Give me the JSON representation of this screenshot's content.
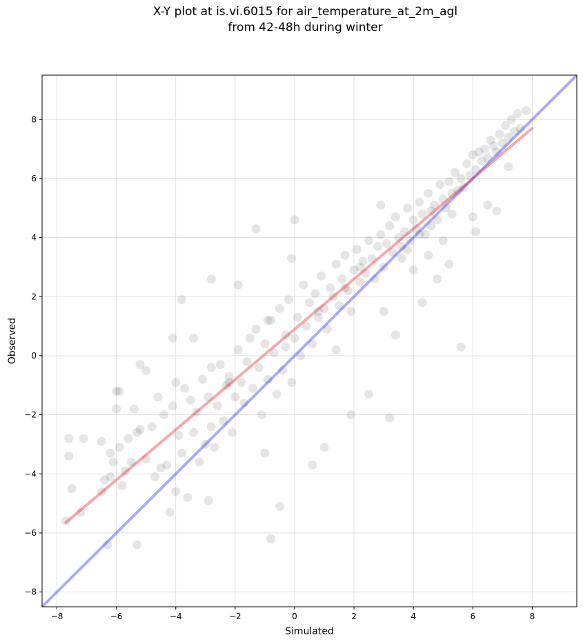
{
  "chart_data": {
    "type": "scatter",
    "title": "X-Y plot at is.vi.6015 for air_temperature_at_2m_agl",
    "subtitle": "from 42-48h during winter",
    "xlabel": "Simulated",
    "ylabel": "Observed",
    "xlim": [
      -8.5,
      9.5
    ],
    "ylim": [
      -8.5,
      9.5
    ],
    "xticks": [
      -8,
      -6,
      -4,
      -2,
      0,
      2,
      4,
      6,
      8
    ],
    "yticks": [
      -8,
      -6,
      -4,
      -2,
      0,
      2,
      4,
      6,
      8
    ],
    "tick_labels": [
      "−8",
      "−6",
      "−4",
      "−2",
      "0",
      "2",
      "4",
      "6",
      "8"
    ],
    "grid": true,
    "colors": {
      "points": "#000000",
      "fit_line": "#e8262a",
      "identity_line": "#2b2bff"
    },
    "series": [
      {
        "type": "scatter",
        "x": [
          -7.7,
          -7.6,
          -7.6,
          -7.5,
          -7.2,
          -7.1,
          -6.5,
          -6.5,
          -6.4,
          -6.3,
          -6.2,
          -6.2,
          -6.1,
          -6.0,
          -5.9,
          -5.9,
          -5.8,
          -5.7,
          -5.6,
          -5.5,
          -5.4,
          -5.3,
          -5.3,
          -5.2,
          -5.0,
          -5.0,
          -4.8,
          -4.7,
          -4.6,
          -4.5,
          -4.4,
          -4.3,
          -4.2,
          -4.1,
          -4.0,
          -4.0,
          -3.9,
          -3.8,
          -3.7,
          -3.6,
          -3.5,
          -3.4,
          -3.3,
          -3.2,
          -3.1,
          -3.0,
          -2.9,
          -2.8,
          -2.8,
          -2.7,
          -2.6,
          -2.5,
          -2.4,
          -2.3,
          -2.2,
          -2.1,
          -2.0,
          -1.9,
          -1.8,
          -1.7,
          -1.6,
          -1.5,
          -1.4,
          -1.3,
          -1.2,
          -1.1,
          -1.0,
          -0.9,
          -0.8,
          -0.8,
          -0.7,
          -0.6,
          -0.5,
          -0.4,
          -0.3,
          -0.2,
          -0.1,
          0.0,
          0.1,
          0.2,
          0.3,
          0.4,
          0.5,
          0.6,
          0.7,
          0.8,
          0.9,
          1.0,
          1.1,
          1.2,
          1.3,
          1.4,
          1.5,
          1.6,
          1.7,
          1.8,
          1.9,
          2.0,
          2.1,
          2.2,
          2.3,
          2.4,
          2.5,
          2.6,
          2.7,
          2.8,
          2.9,
          3.0,
          3.1,
          3.2,
          3.3,
          3.4,
          3.5,
          3.6,
          3.7,
          3.8,
          3.9,
          4.0,
          4.1,
          4.2,
          4.3,
          4.4,
          4.5,
          4.6,
          4.7,
          4.8,
          4.9,
          5.0,
          5.1,
          5.2,
          5.3,
          5.4,
          5.5,
          5.6,
          5.7,
          5.8,
          5.9,
          6.0,
          6.1,
          6.2,
          6.3,
          6.4,
          6.5,
          6.6,
          6.7,
          6.8,
          6.9,
          7.0,
          7.1,
          7.2,
          7.3,
          7.4,
          7.5,
          7.6,
          -0.9,
          0.0,
          -1.3,
          -3.8,
          -4.1,
          -2.8,
          0.6,
          1.9,
          3.2,
          5.6,
          -1.9,
          2.9,
          4.3,
          -0.1,
          6.1,
          7.8,
          -6.0,
          -5.2,
          -3.4,
          -2.9,
          -1.0,
          1.0,
          2.5,
          3.4,
          4.8,
          5.2,
          6.8,
          7.2,
          -0.5,
          1.4,
          3.0,
          4.0,
          4.5,
          5.0,
          6.0,
          6.5,
          3.8,
          4.2,
          4.6,
          5.3,
          3.6,
          2.2,
          1.7,
          0.8,
          -0.3,
          -2.2
        ],
        "y": [
          -5.6,
          -3.4,
          -2.8,
          -4.5,
          -5.3,
          -2.8,
          -4.6,
          -2.9,
          -4.2,
          -6.4,
          -3.3,
          -4.1,
          -3.6,
          -1.8,
          -3.1,
          -1.2,
          -4.4,
          -3.9,
          -2.8,
          -3.6,
          -1.8,
          -2.6,
          -6.4,
          -0.3,
          -3.5,
          -0.5,
          -2.4,
          -4.1,
          -1.4,
          -3.8,
          -2.0,
          -3.7,
          -5.3,
          -1.7,
          -4.6,
          -0.9,
          -2.7,
          -3.3,
          -1.1,
          -4.8,
          -1.5,
          -2.6,
          -1.9,
          -3.6,
          -0.8,
          -3.0,
          -1.4,
          -2.4,
          -0.4,
          -3.1,
          -1.7,
          -0.3,
          -2.2,
          -1.0,
          -0.7,
          -2.6,
          -1.4,
          0.2,
          -0.9,
          -1.6,
          -0.2,
          0.6,
          -1.1,
          0.9,
          -0.4,
          -2.0,
          0.4,
          -0.8,
          1.2,
          -6.2,
          0.1,
          -1.3,
          1.6,
          -0.5,
          0.3,
          1.9,
          -0.9,
          0.6,
          1.3,
          0.0,
          2.4,
          1.0,
          1.8,
          0.4,
          2.1,
          1.3,
          2.7,
          1.6,
          0.9,
          2.3,
          2.0,
          3.1,
          1.7,
          2.6,
          3.4,
          2.2,
          1.5,
          2.9,
          3.6,
          2.5,
          3.2,
          2.8,
          3.9,
          3.3,
          2.6,
          3.7,
          4.1,
          3.0,
          3.8,
          4.4,
          3.5,
          4.7,
          4.0,
          3.3,
          4.2,
          5.0,
          3.9,
          4.6,
          4.3,
          5.2,
          4.8,
          4.1,
          5.5,
          4.9,
          5.1,
          4.6,
          5.8,
          5.3,
          5.0,
          5.9,
          5.5,
          6.2,
          5.6,
          6.0,
          5.7,
          6.5,
          6.1,
          6.8,
          6.3,
          6.9,
          6.6,
          7.0,
          6.7,
          7.3,
          7.1,
          6.9,
          7.5,
          7.2,
          7.8,
          7.4,
          8.0,
          7.6,
          8.2,
          7.7,
          1.2,
          4.6,
          4.3,
          1.9,
          0.6,
          2.6,
          -3.7,
          -2.0,
          -2.1,
          0.3,
          2.4,
          5.1,
          1.8,
          3.3,
          4.2,
          8.3,
          -1.2,
          -2.5,
          0.6,
          -4.9,
          -3.3,
          -3.1,
          -1.3,
          0.7,
          2.6,
          3.1,
          4.9,
          6.4,
          -5.1,
          0.2,
          1.5,
          2.9,
          3.4,
          3.9,
          4.7,
          5.1,
          3.6,
          4.1,
          4.4,
          4.8,
          3.7,
          3.0,
          2.3,
          1.5,
          0.7,
          -0.9
        ]
      },
      {
        "name": "",
        "type": "line",
        "role": "linear fit",
        "x": [
          -7.7,
          8.0
        ],
        "y": [
          -5.65,
          7.7
        ]
      },
      {
        "name": "",
        "type": "line",
        "role": "1:1 line",
        "x": [
          -8.5,
          9.5
        ],
        "y": [
          -8.5,
          9.5
        ]
      }
    ]
  }
}
